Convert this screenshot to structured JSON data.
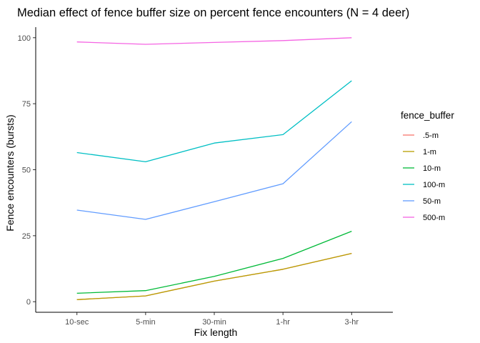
{
  "chart_data": {
    "type": "line",
    "title": "Median effect of fence buffer size on percent fence encounters (N = 4 deer)",
    "xlabel": "Fix length",
    "ylabel": "Fence encounters (bursts)",
    "categories": [
      "10-sec",
      "5-min",
      "30-min",
      "1-hr",
      "3-hr"
    ],
    "ylim": [
      -4,
      104
    ],
    "yticks": [
      0,
      25,
      50,
      75,
      100
    ],
    "grid": false,
    "legend": {
      "title": "fence_buffer",
      "placement": "right"
    },
    "series": [
      {
        "name": ".5-m",
        "color": "#F8766D",
        "values": [
          0.8,
          2.2,
          7.8,
          12.3,
          18.3
        ]
      },
      {
        "name": "1-m",
        "color": "#B79F00",
        "values": [
          0.8,
          2.2,
          7.8,
          12.3,
          18.3
        ]
      },
      {
        "name": "10-m",
        "color": "#00BA38",
        "values": [
          3.2,
          4.2,
          9.6,
          16.4,
          26.7
        ]
      },
      {
        "name": "100-m",
        "color": "#00BFC4",
        "values": [
          56.5,
          53.0,
          60.1,
          63.3,
          83.7
        ]
      },
      {
        "name": "50-m",
        "color": "#619CFF",
        "values": [
          34.7,
          31.2,
          37.9,
          44.7,
          68.2
        ]
      },
      {
        "name": "500-m",
        "color": "#F564E3",
        "values": [
          98.4,
          97.5,
          98.2,
          98.9,
          100.0
        ]
      }
    ]
  }
}
